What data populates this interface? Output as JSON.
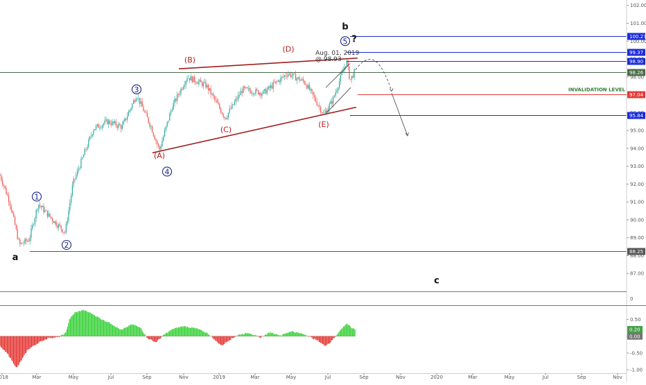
{
  "chart_data": [
    {
      "type": "candlestick",
      "y_ticks": [
        "102.00",
        "101.00",
        "100.00",
        "99.00",
        "98.00",
        "97.00",
        "96.00",
        "95.00",
        "94.00",
        "93.00",
        "92.00",
        "91.00",
        "90.00",
        "89.00",
        "88.00",
        "87.00"
      ],
      "ylim": [
        86.0,
        102.3
      ],
      "x_ticks": [
        "2018",
        "Mar",
        "May",
        "Jul",
        "Sep",
        "Nov",
        "2019",
        "Mar",
        "May",
        "Jul",
        "Sep",
        "Nov",
        "2020",
        "Mar",
        "May",
        "Jul",
        "Sep",
        "Nov"
      ],
      "price_path": [
        [
          0,
          92.5
        ],
        [
          14,
          91.0
        ],
        [
          28,
          88.6
        ],
        [
          42,
          88.9
        ],
        [
          55,
          90.9
        ],
        [
          76,
          90.0
        ],
        [
          94,
          89.3
        ],
        [
          105,
          92.0
        ],
        [
          135,
          95.1
        ],
        [
          155,
          95.5
        ],
        [
          176,
          95.2
        ],
        [
          197,
          97.0
        ],
        [
          218,
          95.2
        ],
        [
          230,
          93.9
        ],
        [
          248,
          96.3
        ],
        [
          270,
          98.0
        ],
        [
          298,
          97.5
        ],
        [
          325,
          95.7
        ],
        [
          350,
          97.3
        ],
        [
          380,
          97.1
        ],
        [
          415,
          98.2
        ],
        [
          440,
          97.7
        ],
        [
          467,
          95.9
        ],
        [
          480,
          96.7
        ],
        [
          500,
          98.9
        ],
        [
          505,
          97.8
        ],
        [
          513,
          98.4
        ]
      ],
      "projection_path": [
        [
          513,
          98.4
        ],
        [
          535,
          99.0
        ],
        [
          550,
          98.7
        ],
        [
          565,
          97.2
        ]
      ],
      "projection_arrow": [
        [
          565,
          97.1
        ],
        [
          588,
          94.7
        ]
      ],
      "channel_lines": [
        {
          "from": [
            258,
            98.45
          ],
          "to": [
            516,
            99.05
          ]
        },
        {
          "from": [
            220,
            93.75
          ],
          "to": [
            514,
            96.3
          ]
        }
      ],
      "wedge_lines": [
        {
          "from": [
            470,
            97.4
          ],
          "to": [
            505,
            98.75
          ]
        },
        {
          "from": [
            469,
            95.9
          ],
          "to": [
            506,
            97.4
          ]
        }
      ],
      "horizontal_levels": [
        {
          "value": 100.27,
          "label": "100.27",
          "color": "#1a2bd6",
          "x_start": 505
        },
        {
          "value": 99.37,
          "label": "99.37",
          "color": "#1a2bd6",
          "x_start": 500
        },
        {
          "value": 98.9,
          "label": "98.90",
          "color": "#1a2bd6",
          "x_start": 500
        },
        {
          "value": 98.26,
          "label": "98.26",
          "color": "#4a6b4a",
          "x_start": 0
        },
        {
          "value": 97.04,
          "label": "97.04",
          "color": "#e53935",
          "x_start": 516
        },
        {
          "value": 95.84,
          "label": "95.84",
          "color": "#1a2bd6",
          "x_start": 505
        },
        {
          "value": 88.25,
          "label": "88.25",
          "color": "#555555",
          "x_start": 43
        }
      ],
      "invalidation_label": "INVALIDATION LEVEL",
      "annotation_date": "Aug. 01, 2019",
      "annotation_price": "@ 98.93",
      "wave_labels": [
        {
          "text": "a",
          "x": 22,
          "y": 87.75,
          "style": "black"
        },
        {
          "text": "b",
          "x": 498,
          "y": 100.65,
          "style": "black"
        },
        {
          "text": "c",
          "x": 630,
          "y": 86.45,
          "style": "black"
        },
        {
          "text": "?",
          "x": 511,
          "y": 99.95,
          "style": "black"
        },
        {
          "text": "1",
          "x": 53,
          "y": 91.3,
          "style": "circle"
        },
        {
          "text": "2",
          "x": 96,
          "y": 88.6,
          "style": "circle"
        },
        {
          "text": "3",
          "x": 197,
          "y": 97.3,
          "style": "circle"
        },
        {
          "text": "4",
          "x": 241,
          "y": 92.7,
          "style": "circle"
        },
        {
          "text": "5",
          "x": 498,
          "y": 100.0,
          "style": "circle"
        },
        {
          "text": "(A)",
          "x": 230,
          "y": 93.45,
          "style": "red"
        },
        {
          "text": "(B)",
          "x": 274,
          "y": 98.8,
          "style": "red"
        },
        {
          "text": "(C)",
          "x": 326,
          "y": 94.9,
          "style": "red"
        },
        {
          "text": "(D)",
          "x": 416,
          "y": 99.4,
          "style": "red"
        },
        {
          "text": "(E)",
          "x": 467,
          "y": 95.2,
          "style": "red"
        }
      ]
    },
    {
      "type": "histogram",
      "y_ticks": [
        "0.50",
        "0.00",
        "-0.50",
        "-1.00"
      ],
      "ylim": [
        -1.1,
        0.9
      ],
      "current_values": [
        {
          "value": 0.2,
          "label": "0.20",
          "color": "#43a047"
        },
        {
          "value": 0.0,
          "label": "0.00",
          "color": "#757575"
        }
      ],
      "x": [
        0,
        12,
        24,
        30,
        40,
        55,
        70,
        85,
        95,
        100,
        108,
        120,
        132,
        145,
        160,
        175,
        190,
        202,
        212,
        225,
        237,
        250,
        265,
        285,
        300,
        312,
        320,
        330,
        345,
        360,
        375,
        390,
        405,
        420,
        430,
        440,
        450,
        460,
        468,
        476,
        484,
        492,
        500,
        507,
        513
      ],
      "values": [
        -0.3,
        -0.55,
        -0.95,
        -0.75,
        -0.4,
        -0.2,
        -0.05,
        -0.03,
        0.1,
        0.5,
        0.7,
        0.78,
        0.68,
        0.52,
        0.38,
        0.18,
        0.35,
        0.28,
        -0.05,
        -0.18,
        0.05,
        0.22,
        0.3,
        0.22,
        0.08,
        -0.15,
        -0.28,
        -0.12,
        0.05,
        0.1,
        -0.05,
        0.12,
        0.02,
        0.15,
        0.1,
        0.05,
        -0.05,
        -0.15,
        -0.28,
        -0.2,
        0.0,
        0.2,
        0.38,
        0.25,
        0.2
      ]
    }
  ],
  "right_scale_extra_tick": "0"
}
